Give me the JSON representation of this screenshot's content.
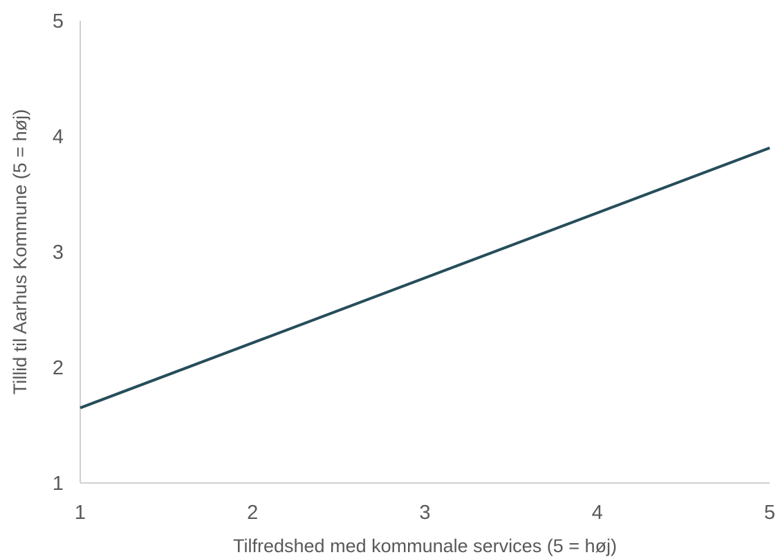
{
  "chart_data": {
    "type": "line",
    "title": "",
    "xlabel": "Tilfredshed med kommunale services (5 = høj)",
    "ylabel": "Tillid til Aarhus Kommune (5 = høj)",
    "xlim": [
      1,
      5
    ],
    "ylim": [
      1,
      5
    ],
    "x_ticks": [
      "1",
      "2",
      "3",
      "4",
      "5"
    ],
    "y_ticks": [
      "1",
      "2",
      "3",
      "4",
      "5"
    ],
    "grid": false,
    "legend": "none",
    "series": [
      {
        "x": [
          1,
          5
        ],
        "y": [
          1.65,
          3.9
        ]
      }
    ],
    "colors": {
      "line": "#264d5a",
      "axis": "#d0d0d0",
      "text": "#595959"
    }
  }
}
